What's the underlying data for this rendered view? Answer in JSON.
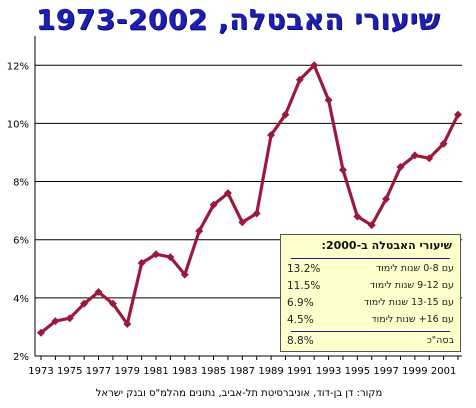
{
  "chart_data": {
    "type": "line",
    "title": "שיעורי האבטלה, 1973-2002",
    "x_tick_labels": [
      "1973",
      "1975",
      "1977",
      "1979",
      "1981",
      "1983",
      "1985",
      "1987",
      "1989",
      "1991",
      "1993",
      "1995",
      "1997",
      "1999",
      "2001"
    ],
    "y_tick_labels": [
      "2%",
      "4%",
      "6%",
      "8%",
      "10%",
      "12%"
    ],
    "ylim": [
      2,
      12.8
    ],
    "xlim": [
      1973,
      2002
    ],
    "grid": "horizontal",
    "series": [
      {
        "color": "#9b1a3c",
        "x": [
          1973,
          1974,
          1975,
          1976,
          1977,
          1978,
          1979,
          1980,
          1981,
          1982,
          1983,
          1984,
          1985,
          1986,
          1987,
          1988,
          1989,
          1990,
          1991,
          1992,
          1993,
          1994,
          1995,
          1996,
          1997,
          1998,
          1999,
          2000,
          2001,
          2002
        ],
        "values": [
          2.8,
          3.2,
          3.3,
          3.8,
          4.2,
          3.8,
          3.1,
          5.2,
          5.5,
          5.4,
          4.8,
          6.3,
          7.2,
          7.6,
          6.6,
          6.9,
          9.6,
          10.3,
          11.5,
          12.0,
          10.8,
          8.4,
          6.8,
          6.5,
          7.4,
          8.5,
          8.9,
          8.8,
          9.3,
          10.3
        ]
      }
    ],
    "annotation_box": {
      "title": "שיעורי האבטלה ב-2000:",
      "rows": [
        {
          "label": "עם 0-8 שנות לימוד",
          "value": "13.2%"
        },
        {
          "label": "עם 9-12 שנות לימוד",
          "value": "11.5%"
        },
        {
          "label": "עם 13-15 שנות לימוד",
          "value": "6.9%"
        },
        {
          "label": "עם 16+ שנות לימוד",
          "value": "4.5%"
        }
      ],
      "total": {
        "label": "בסה\"כ",
        "value": "8.8%"
      }
    },
    "source": "מקור: דן בן-דוד, אוניברסיטת תל-אביב, נתונים מהלמ\"ס ובנק ישראל"
  }
}
